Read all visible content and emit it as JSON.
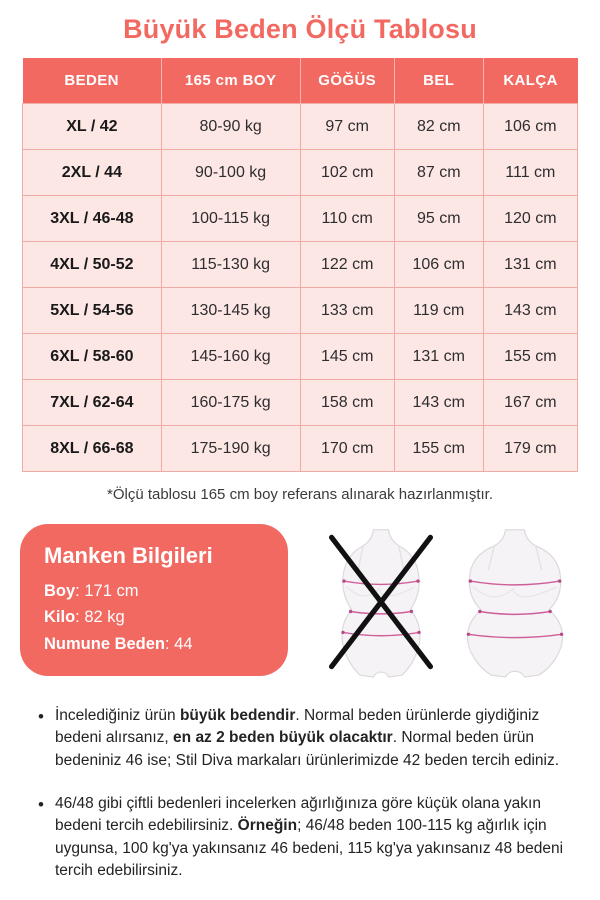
{
  "title": "Büyük Beden Ölçü Tablosu",
  "table": {
    "headers": [
      "BEDEN",
      "165 cm BOY",
      "GÖĞÜS",
      "BEL",
      "KALÇA"
    ],
    "rows": [
      [
        "XL / 42",
        "80-90 kg",
        "97 cm",
        "82 cm",
        "106 cm"
      ],
      [
        "2XL / 44",
        "90-100 kg",
        "102 cm",
        "87 cm",
        "111 cm"
      ],
      [
        "3XL / 46-48",
        "100-115 kg",
        "110 cm",
        "95 cm",
        "120 cm"
      ],
      [
        "4XL / 50-52",
        "115-130 kg",
        "122 cm",
        "106 cm",
        "131 cm"
      ],
      [
        "5XL / 54-56",
        "130-145 kg",
        "133 cm",
        "119 cm",
        "143 cm"
      ],
      [
        "6XL / 58-60",
        "145-160 kg",
        "145 cm",
        "131 cm",
        "155 cm"
      ],
      [
        "7XL / 62-64",
        "160-175 kg",
        "158 cm",
        "143 cm",
        "167 cm"
      ],
      [
        "8XL / 66-68",
        "175-190 kg",
        "170 cm",
        "155 cm",
        "179 cm"
      ]
    ]
  },
  "footnote": "*Ölçü tablosu 165 cm boy referans alınarak hazırlanmıştır.",
  "model_info": {
    "title": "Manken Bilgileri",
    "fields": [
      {
        "label": "Boy",
        "value": ": 171 cm"
      },
      {
        "label": "Kilo",
        "value": ": 82 kg"
      },
      {
        "label": "Numune Beden",
        "value": ": 44"
      }
    ]
  },
  "figures": {
    "left_icon": "slim-body-crossed-icon",
    "right_icon": "plus-body-icon"
  },
  "notes": [
    {
      "segments": [
        {
          "text": "İncelediğiniz ürün ",
          "bold": false
        },
        {
          "text": "büyük bedendir",
          "bold": true
        },
        {
          "text": ". Normal beden ürünlerde giydiğiniz bedeni alırsanız, ",
          "bold": false
        },
        {
          "text": "en az 2 beden büyük olacaktır",
          "bold": true
        },
        {
          "text": ". Normal beden ürün bedeniniz 46 ise; Stil Diva markaları ürünlerimizde 42 beden tercih ediniz.",
          "bold": false
        }
      ]
    },
    {
      "segments": [
        {
          "text": "46/48 gibi çiftli bedenleri incelerken ağırlığınıza göre küçük olana yakın bedeni tercih edebilirsiniz. ",
          "bold": false
        },
        {
          "text": "Örneğin",
          "bold": true
        },
        {
          "text": "; 46/48 beden 100-115 kg ağırlık için uygunsa, 100 kg'ya yakınsanız 46 bedeni, 115 kg'ya yakınsanız 48 bedeni tercih edebilirsiniz.",
          "bold": false
        }
      ]
    }
  ],
  "colors": {
    "accent": "#f26962",
    "row_background": "#fce7e5",
    "cell_border": "#f0aba4",
    "measure_line": "#cf5f9b",
    "cross_mark": "#111111"
  }
}
